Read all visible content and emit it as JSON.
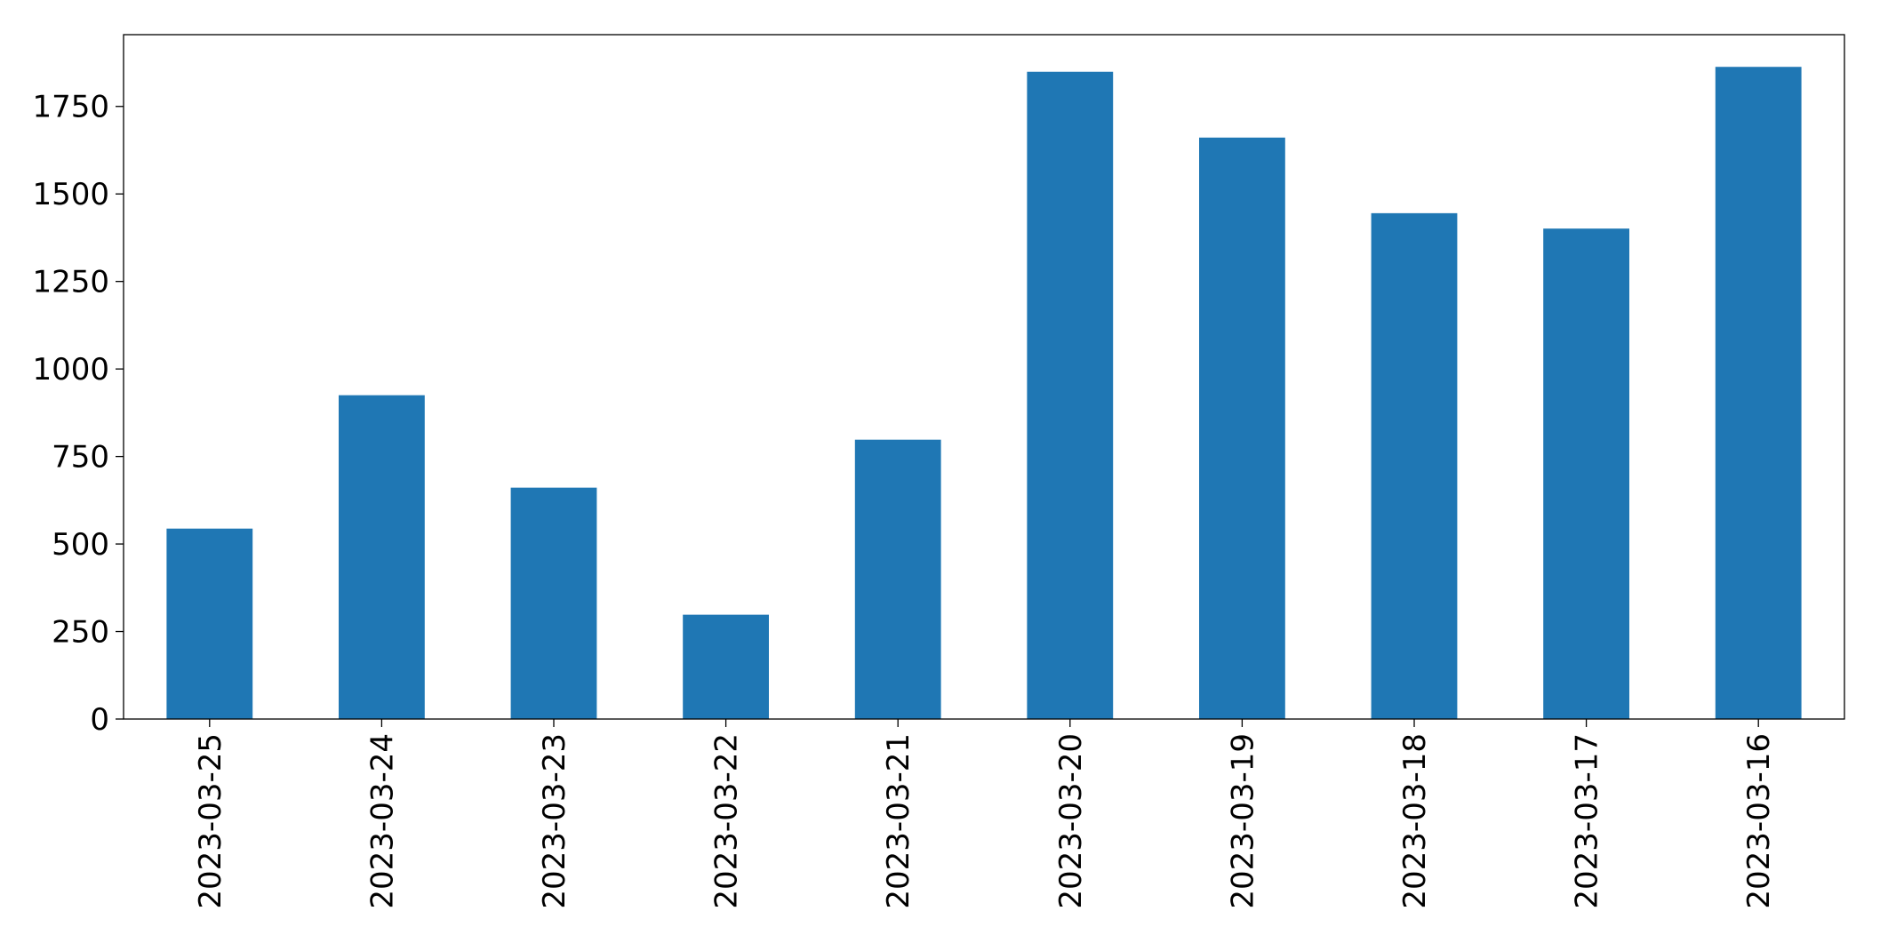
{
  "chart_data": {
    "type": "bar",
    "categories": [
      "2023-03-25",
      "2023-03-24",
      "2023-03-23",
      "2023-03-22",
      "2023-03-21",
      "2023-03-20",
      "2023-03-19",
      "2023-03-18",
      "2023-03-17",
      "2023-03-16"
    ],
    "values": [
      544,
      925,
      661,
      298,
      798,
      1849,
      1661,
      1445,
      1401,
      1863
    ],
    "color": "#1f77b4",
    "ylim": [
      0,
      1955
    ],
    "yticks": [
      0,
      250,
      500,
      750,
      1000,
      1250,
      1500,
      1750
    ],
    "grid": false
  }
}
